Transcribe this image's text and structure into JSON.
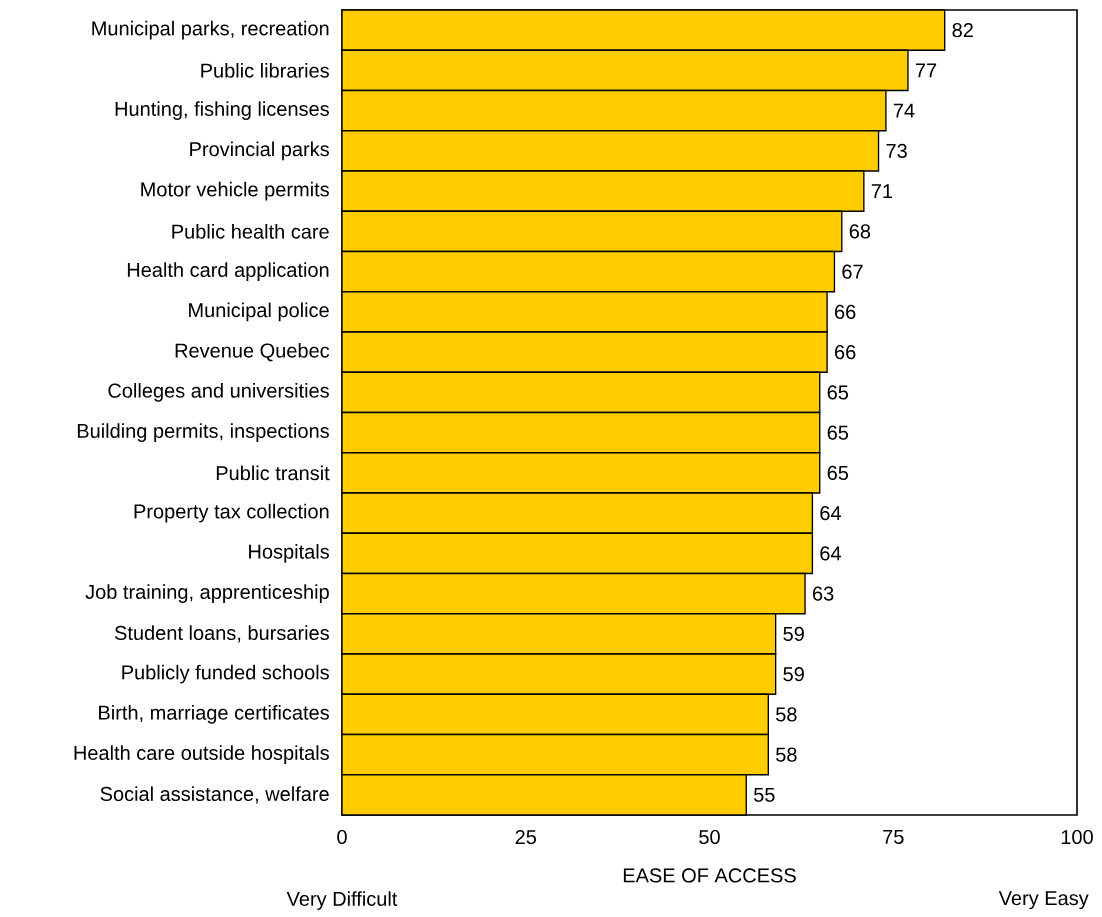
{
  "chart_data": {
    "type": "bar",
    "orientation": "horizontal",
    "categories": [
      "Municipal parks, recreation",
      "Public libraries",
      "Hunting, fishing licenses",
      "Provincial parks",
      "Motor vehicle permits",
      "Public health care",
      "Health card application",
      "Municipal police",
      "Revenue Quebec",
      "Colleges and universities",
      "Building permits, inspections",
      "Public transit",
      "Property tax collection",
      "Hospitals",
      "Job training, apprenticeship",
      "Student loans, bursaries",
      "Publicly funded schools",
      "Birth, marriage certificates",
      "Health care outside hospitals",
      "Social assistance, welfare"
    ],
    "values": [
      82,
      77,
      74,
      73,
      71,
      68,
      67,
      66,
      66,
      65,
      65,
      65,
      64,
      64,
      63,
      59,
      59,
      58,
      58,
      55
    ],
    "color": "#ffcc00",
    "xlim": [
      0,
      100
    ],
    "xticks": [
      0,
      25,
      50,
      75,
      100
    ],
    "xlabel": "EASE OF ACCESS",
    "annotations": [
      "Very Difficult",
      "Very Easy"
    ],
    "data_labels": true
  }
}
